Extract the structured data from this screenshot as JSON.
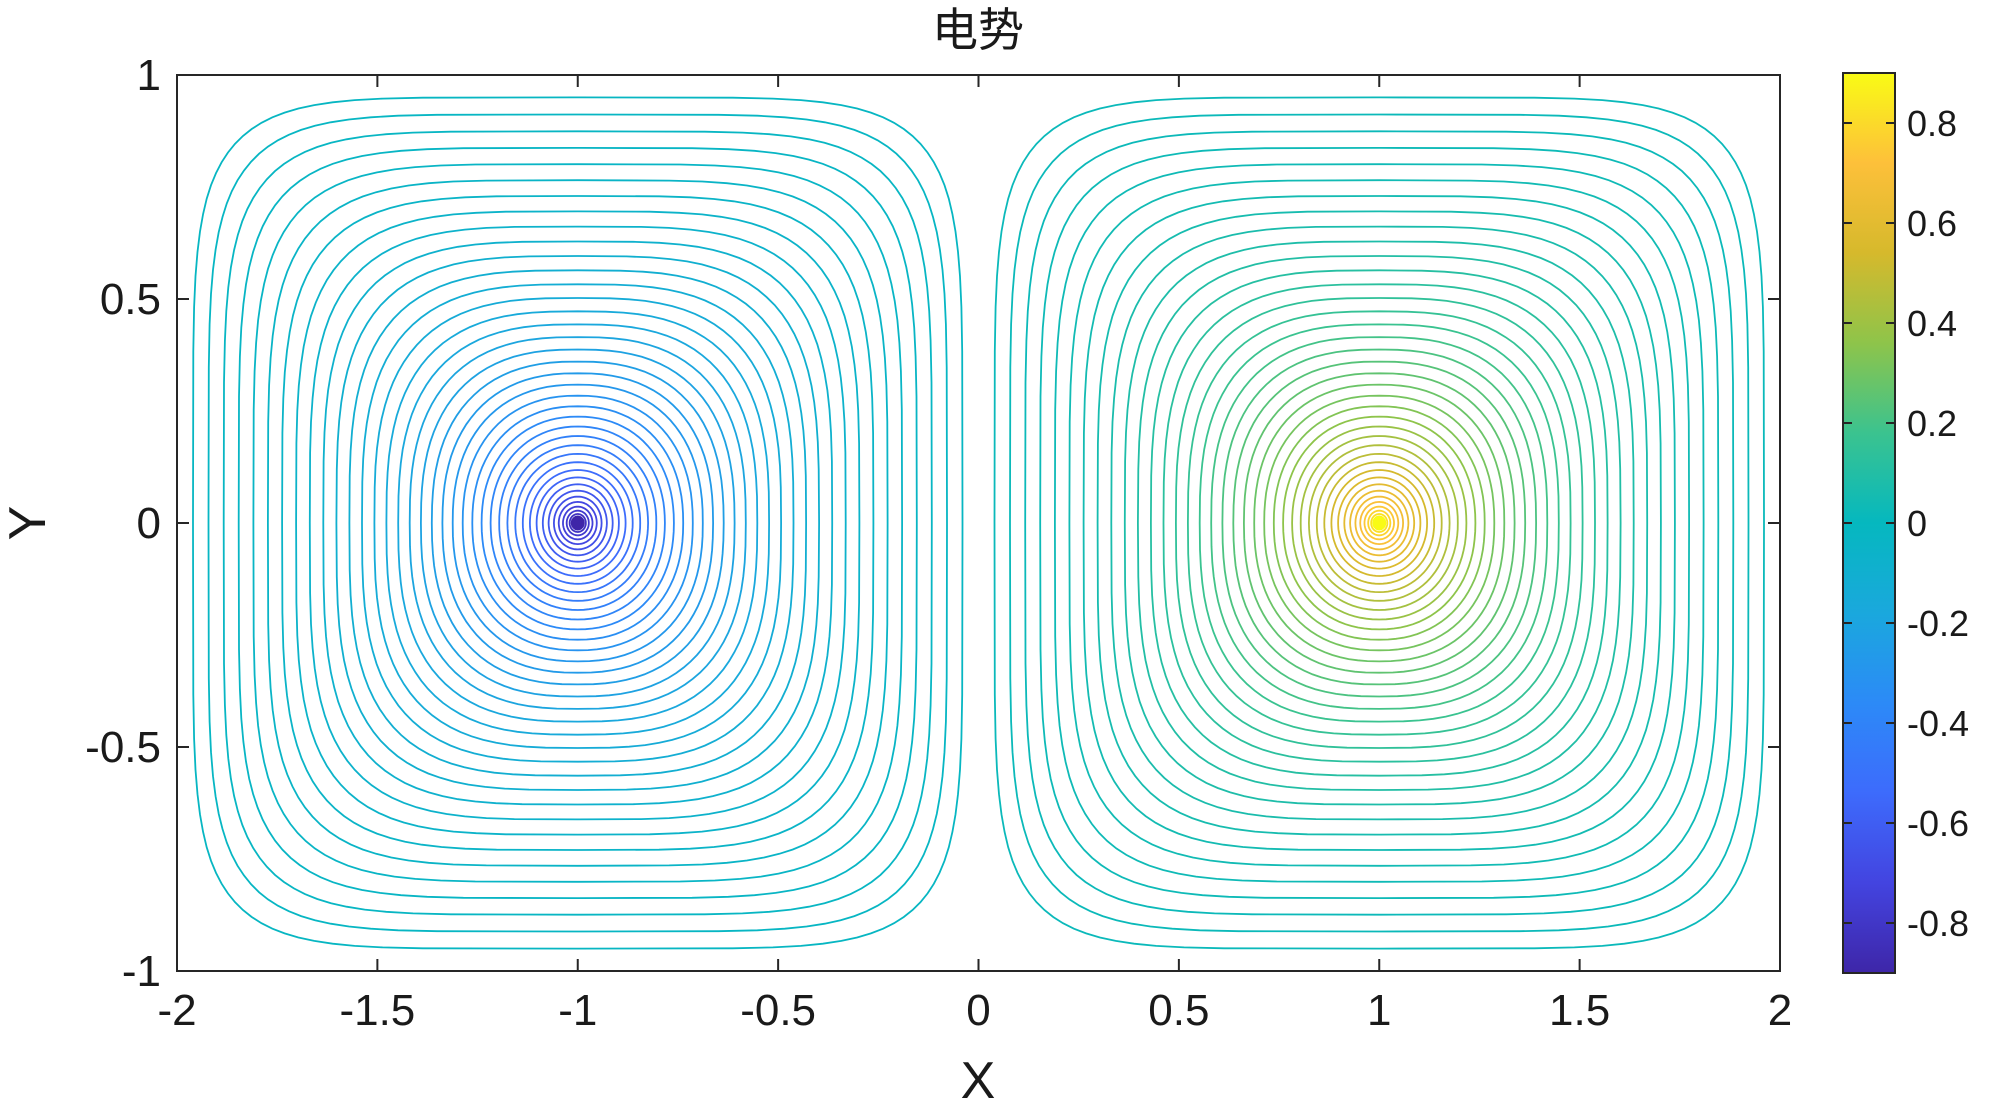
{
  "chart_data": {
    "type": "contour",
    "title": "电势",
    "xlabel": "X",
    "ylabel": "Y",
    "xlim": [
      -2,
      2
    ],
    "ylim": [
      -1,
      1
    ],
    "x_ticks": [
      "-2",
      "-1.5",
      "-1",
      "-0.5",
      "0",
      "0.5",
      "1",
      "1.5",
      "2"
    ],
    "y_ticks": [
      "1",
      "0.5",
      "0",
      "-0.5",
      "-1"
    ],
    "colorbar": {
      "colormap": "parula",
      "range": [
        -0.9,
        0.9
      ],
      "ticks": [
        "0.8",
        "0.6",
        "0.4",
        "0.2",
        "0",
        "-0.2",
        "-0.4",
        "-0.6",
        "-0.8"
      ]
    },
    "charges": [
      {
        "x": -1,
        "y": 0,
        "sign": -1
      },
      {
        "x": 1,
        "y": 0,
        "sign": 1
      }
    ],
    "contour_levels_per_side": 40,
    "level_min_abs": 0.02,
    "level_max_abs": 0.9,
    "grid": false,
    "colors": {
      "negative_core": "#3e26a8",
      "positive_core": "#f9fb15",
      "zero": "#17bcbf"
    }
  }
}
